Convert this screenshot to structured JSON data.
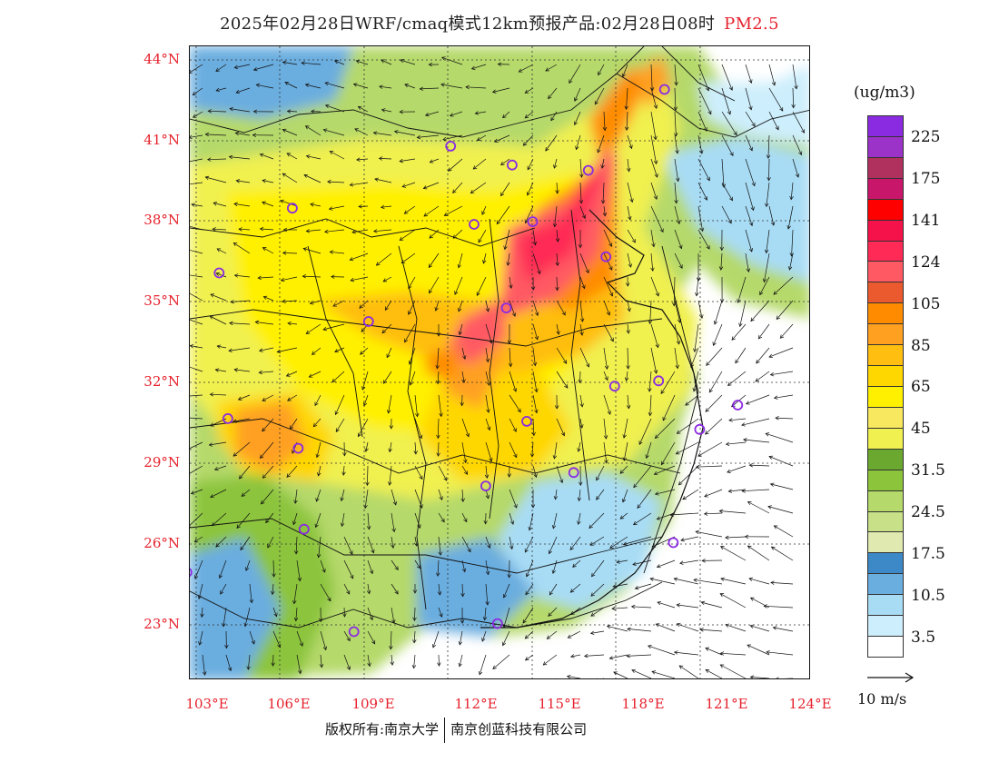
{
  "title": {
    "text": "2025年02月28日WRF/cmaq模式12km预报产品:02月28日08时",
    "pollutant": "PM2.5"
  },
  "map": {
    "lat_labels": [
      "44°N",
      "41°N",
      "38°N",
      "35°N",
      "32°N",
      "29°N",
      "26°N",
      "23°N"
    ],
    "lon_labels": [
      "103°E",
      "106°E",
      "109°E",
      "112°E",
      "115°E",
      "118°E",
      "121°E",
      "124°E"
    ],
    "lat_range": [
      21,
      44.5
    ],
    "lon_range": [
      102.8,
      124
    ]
  },
  "legend": {
    "unit": "(ug/m3)",
    "labels": [
      "225",
      "175",
      "141",
      "124",
      "105",
      "85",
      "65",
      "45",
      "31.5",
      "24.5",
      "17.5",
      "10.5",
      "3.5"
    ],
    "colors": [
      "#8a2be2",
      "#9b33c8",
      "#b0305e",
      "#c8176a",
      "#ff0000",
      "#f5124a",
      "#ff2a55",
      "#ff5a63",
      "#ea5a2e",
      "#ff8c00",
      "#ffa020",
      "#ffbe10",
      "#ffd700",
      "#fff000",
      "#f7e860",
      "#f0f050",
      "#6aa830",
      "#8cc43c",
      "#b5d96a",
      "#c8e088",
      "#dfe9b0",
      "#3d88c7",
      "#6aaddf",
      "#a8dcf5",
      "#cdeefc",
      "#ffffff"
    ]
  },
  "vector": {
    "label": "10 m/s"
  },
  "cities": [
    {
      "lon": 119.0,
      "lat": 42.9
    },
    {
      "lon": 111.7,
      "lat": 40.8
    },
    {
      "lon": 113.8,
      "lat": 40.1
    },
    {
      "lon": 116.4,
      "lat": 39.9
    },
    {
      "lon": 106.3,
      "lat": 38.5
    },
    {
      "lon": 112.5,
      "lat": 37.9
    },
    {
      "lon": 114.5,
      "lat": 38.0
    },
    {
      "lon": 117.0,
      "lat": 36.7
    },
    {
      "lon": 103.8,
      "lat": 36.1
    },
    {
      "lon": 113.6,
      "lat": 34.8
    },
    {
      "lon": 108.9,
      "lat": 34.3
    },
    {
      "lon": 117.3,
      "lat": 31.9
    },
    {
      "lon": 118.8,
      "lat": 32.1
    },
    {
      "lon": 121.5,
      "lat": 31.2
    },
    {
      "lon": 120.2,
      "lat": 30.3
    },
    {
      "lon": 104.1,
      "lat": 30.7
    },
    {
      "lon": 114.3,
      "lat": 30.6
    },
    {
      "lon": 106.5,
      "lat": 29.6
    },
    {
      "lon": 115.9,
      "lat": 28.7
    },
    {
      "lon": 112.9,
      "lat": 28.2
    },
    {
      "lon": 106.7,
      "lat": 26.6
    },
    {
      "lon": 119.3,
      "lat": 26.1
    },
    {
      "lon": 102.7,
      "lat": 25.0
    },
    {
      "lon": 113.3,
      "lat": 23.1
    },
    {
      "lon": 108.4,
      "lat": 22.8
    }
  ],
  "footer": {
    "left": "版权所有:南京大学",
    "right": "南京创蓝科技有限公司"
  }
}
